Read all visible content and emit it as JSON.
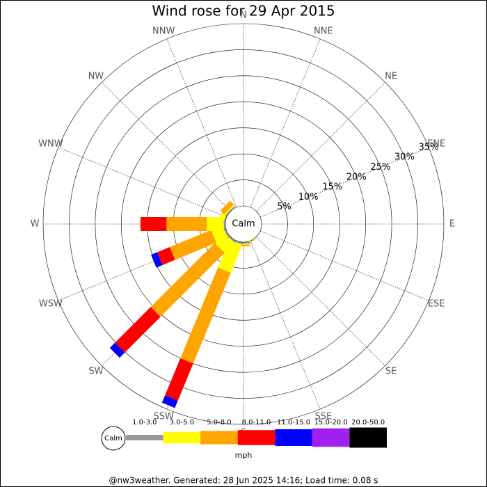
{
  "chart_data": {
    "type": "windrose",
    "title": "Wind rose for 29 Apr 2015",
    "categories": [
      "N",
      "NNE",
      "NE",
      "ENE",
      "E",
      "ESE",
      "SE",
      "SSE",
      "S",
      "SSW",
      "SW",
      "WSW",
      "W",
      "WNW",
      "NW",
      "NNW"
    ],
    "series": [
      {
        "name": "1.0-3.0",
        "color": "#999999",
        "values": [
          0,
          0,
          0,
          0,
          0,
          0,
          0,
          0,
          0.3,
          0.3,
          0.3,
          0.3,
          0.3,
          0.2,
          0.2,
          0
        ]
      },
      {
        "name": "3.0-5.0",
        "color": "#ffff00",
        "values": [
          0,
          0,
          0,
          0,
          0,
          0,
          0,
          0.2,
          0.2,
          5.8,
          2.7,
          2.4,
          3.3,
          1.0,
          0.3,
          0
        ]
      },
      {
        "name": "5.0-8.0",
        "color": "#ffa500",
        "values": [
          0,
          0,
          0,
          0,
          0,
          0,
          0,
          0,
          0.3,
          18.9,
          17.4,
          8.6,
          7.7,
          0,
          1.0,
          0
        ]
      },
      {
        "name": "8.0-11.0",
        "color": "#ff0000",
        "values": [
          0,
          0,
          0,
          0,
          0,
          0,
          0,
          0,
          0,
          7.7,
          9.7,
          2.6,
          5.0,
          0,
          0,
          0
        ]
      },
      {
        "name": "11.0-15.0",
        "color": "#0000ff",
        "values": [
          0,
          0,
          0,
          0,
          0,
          0,
          0,
          0,
          0,
          1.5,
          1.4,
          1.3,
          0,
          0,
          0,
          0
        ]
      },
      {
        "name": "15.0-20.0",
        "color": "#a020f0",
        "values": [
          0,
          0,
          0,
          0,
          0,
          0,
          0,
          0,
          0,
          0,
          0,
          0,
          0,
          0,
          0,
          0
        ]
      },
      {
        "name": "20.0-50.0",
        "color": "#000000",
        "values": [
          0,
          0,
          0,
          0,
          0,
          0,
          0,
          0,
          0,
          0,
          0,
          0,
          0,
          0,
          0,
          0
        ]
      }
    ],
    "rlim": [
      0,
      35
    ],
    "rticks": [
      {
        "value": 5,
        "label": "5%"
      },
      {
        "value": 10,
        "label": "10%"
      },
      {
        "value": 15,
        "label": "15%"
      },
      {
        "value": 20,
        "label": "20%"
      },
      {
        "value": 25,
        "label": "25%"
      },
      {
        "value": 30,
        "label": "30%"
      },
      {
        "value": 35,
        "label": "35%"
      }
    ],
    "calm_label": "Calm",
    "unit": "mph",
    "footer": "@nw3weather. Generated: 28 Jun 2025 14:16; Load time: 0.08 s"
  }
}
